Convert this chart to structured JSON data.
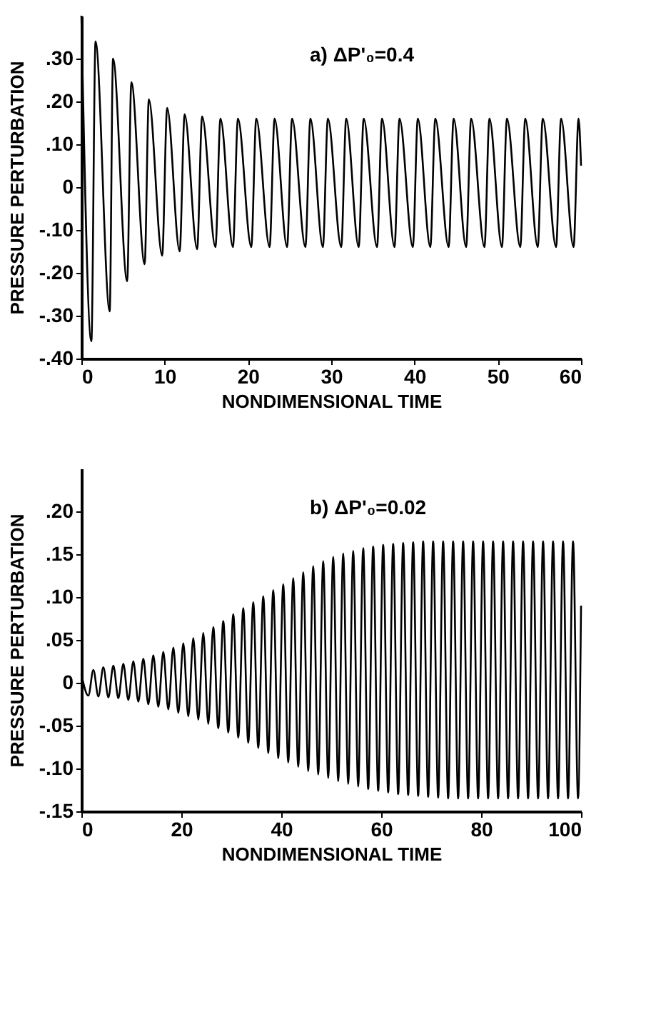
{
  "chart_data": [
    {
      "type": "line",
      "annotations": [
        "a)   ΔP'₀=0.4"
      ],
      "xlabel": "NONDIMENSIONAL TIME",
      "ylabel": "PRESSURE PERTURBATION",
      "color": "#000000",
      "xlim": [
        0,
        60
      ],
      "ylim": [
        -0.4,
        0.4
      ],
      "xticks": [
        0,
        10,
        20,
        30,
        40,
        50,
        60
      ],
      "yticks": [
        {
          "value": 0.3,
          "label": ".30"
        },
        {
          "value": 0.2,
          "label": ".20"
        },
        {
          "value": 0.1,
          "label": ".10"
        },
        0,
        {
          "value": -0.1,
          "label": "-.10"
        },
        {
          "value": -0.2,
          "label": "-.20"
        },
        {
          "value": -0.3,
          "label": "-.30"
        },
        {
          "value": -0.4,
          "label": "-.40"
        }
      ],
      "x": [
        0,
        1.2,
        1.7,
        3.4,
        3.8,
        5.5,
        6.0,
        7.6,
        8.1,
        9.7,
        10.3,
        11.8,
        12.4,
        13.9,
        14.5,
        16.1,
        16.7,
        18.2,
        18.8,
        20.4,
        21.0,
        22.6,
        23.2,
        24.7,
        25.3,
        26.9,
        27.5,
        29.0,
        29.6,
        31.2,
        31.8,
        33.3,
        33.9,
        35.5,
        36.1,
        37.6,
        38.2,
        39.8,
        40.4,
        41.9,
        42.5,
        44.1,
        44.7,
        46.2,
        46.8,
        48.4,
        49.0,
        50.5,
        51.1,
        52.7,
        53.3,
        54.8,
        55.4,
        57.0,
        57.6,
        59.1,
        59.7,
        60
      ],
      "values": [
        0.4,
        -0.36,
        0.34,
        -0.29,
        0.3,
        -0.22,
        0.245,
        -0.18,
        0.205,
        -0.16,
        0.185,
        -0.15,
        0.17,
        -0.145,
        0.165,
        -0.14,
        0.16,
        -0.14,
        0.16,
        -0.14,
        0.16,
        -0.14,
        0.16,
        -0.14,
        0.16,
        -0.14,
        0.16,
        -0.14,
        0.16,
        -0.14,
        0.16,
        -0.14,
        0.16,
        -0.14,
        0.16,
        -0.14,
        0.16,
        -0.14,
        0.16,
        -0.14,
        0.16,
        -0.14,
        0.16,
        -0.14,
        0.16,
        -0.14,
        0.16,
        -0.14,
        0.16,
        -0.14,
        0.16,
        -0.14,
        0.16,
        -0.14,
        0.16,
        -0.14,
        0.16,
        0.05
      ]
    },
    {
      "type": "line",
      "annotations": [
        "b)   ΔP'₀=0.02"
      ],
      "xlabel": "NONDIMENSIONAL TIME",
      "ylabel": "PRESSURE PERTURBATION",
      "color": "#000000",
      "xlim": [
        0,
        100
      ],
      "ylim": [
        -0.15,
        0.25
      ],
      "xticks": [
        0,
        20,
        40,
        60,
        80,
        100
      ],
      "yticks": [
        {
          "value": 0.2,
          "label": ".20"
        },
        {
          "value": 0.15,
          "label": ".15"
        },
        {
          "value": 0.1,
          "label": ".10"
        },
        {
          "value": 0.05,
          "label": ".05"
        },
        0,
        {
          "value": -0.05,
          "label": "-.05"
        },
        {
          "value": -0.1,
          "label": "-.10"
        },
        {
          "value": -0.15,
          "label": "-.15"
        }
      ],
      "x": [
        0,
        1.4,
        2.4,
        3.4,
        4.4,
        5.4,
        6.4,
        7.4,
        8.4,
        9.4,
        10.4,
        11.4,
        12.4,
        13.4,
        14.4,
        15.4,
        16.4,
        17.4,
        18.4,
        19.4,
        20.4,
        21.4,
        22.4,
        23.4,
        24.4,
        25.4,
        26.4,
        27.4,
        28.4,
        29.4,
        30.4,
        31.4,
        32.4,
        33.4,
        34.4,
        35.4,
        36.4,
        37.4,
        38.4,
        39.4,
        40.4,
        41.4,
        42.4,
        43.4,
        44.4,
        45.4,
        46.4,
        47.4,
        48.4,
        49.4,
        50.4,
        51.4,
        52.4,
        53.4,
        54.4,
        55.4,
        56.4,
        57.4,
        58.4,
        59.4,
        60.4,
        61.4,
        62.4,
        63.4,
        64.4,
        65.4,
        66.4,
        67.4,
        68.4,
        69.4,
        70.4,
        71.4,
        72.4,
        73.4,
        74.4,
        75.4,
        76.4,
        77.4,
        78.4,
        79.4,
        80.4,
        81.4,
        82.4,
        83.4,
        84.4,
        85.4,
        86.4,
        87.4,
        88.4,
        89.4,
        90.4,
        91.4,
        92.4,
        93.4,
        94.4,
        95.4,
        96.4,
        97.4,
        98.4,
        99.4,
        100
      ],
      "values": [
        0.01,
        -0.015,
        0.015,
        -0.016,
        0.018,
        -0.017,
        0.02,
        -0.018,
        0.022,
        -0.02,
        0.025,
        -0.022,
        0.028,
        -0.025,
        0.032,
        -0.028,
        0.036,
        -0.031,
        0.041,
        -0.035,
        0.046,
        -0.039,
        0.052,
        -0.043,
        0.058,
        -0.048,
        0.065,
        -0.053,
        0.072,
        -0.058,
        0.08,
        -0.064,
        0.087,
        -0.07,
        0.094,
        -0.076,
        0.101,
        -0.082,
        0.108,
        -0.088,
        0.115,
        -0.093,
        0.122,
        -0.098,
        0.129,
        -0.103,
        0.136,
        -0.107,
        0.142,
        -0.111,
        0.147,
        -0.115,
        0.151,
        -0.118,
        0.154,
        -0.121,
        0.157,
        -0.124,
        0.159,
        -0.126,
        0.161,
        -0.128,
        0.162,
        -0.13,
        0.163,
        -0.131,
        0.164,
        -0.132,
        0.165,
        -0.133,
        0.165,
        -0.134,
        0.165,
        -0.135,
        0.165,
        -0.135,
        0.165,
        -0.135,
        0.165,
        -0.135,
        0.165,
        -0.135,
        0.165,
        -0.135,
        0.165,
        -0.135,
        0.165,
        -0.135,
        0.165,
        -0.135,
        0.165,
        -0.135,
        0.165,
        -0.135,
        0.165,
        -0.135,
        0.165,
        -0.135,
        0.165,
        -0.135,
        0.09
      ]
    }
  ]
}
